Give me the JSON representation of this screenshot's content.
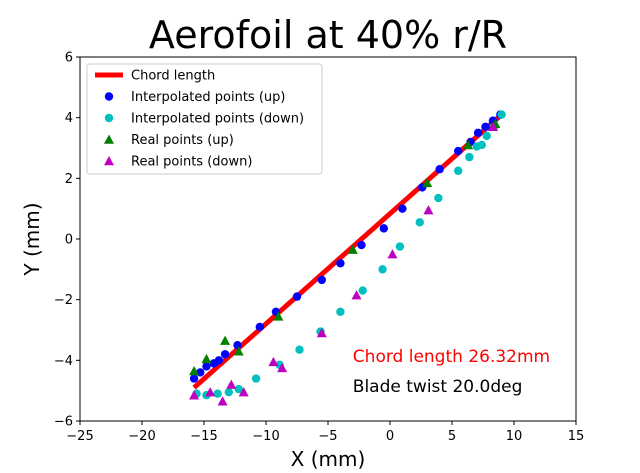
{
  "chart_data": {
    "type": "scatter",
    "title": "Aerofoil at 40% r/R",
    "xlabel": "X (mm)",
    "ylabel": "Y (mm)",
    "xlim": [
      -25,
      15
    ],
    "ylim": [
      -6,
      6
    ],
    "xticks": [
      "−25",
      "−20",
      "−15",
      "−10",
      "−5",
      "0",
      "5",
      "10",
      "15"
    ],
    "yticks": [
      "−6",
      "−4",
      "−2",
      "0",
      "2",
      "4",
      "6"
    ],
    "grid": false,
    "legend_position": "top-left",
    "chord_line": {
      "name": "Chord length",
      "color": "#ff0000",
      "x": [
        -15.8,
        9.0
      ],
      "y": [
        -4.9,
        4.1
      ]
    },
    "series": [
      {
        "name": "Interpolated points (up)",
        "marker": "circle",
        "color": "#0000ff",
        "x": [
          -15.8,
          -15.3,
          -14.8,
          -14.2,
          -13.8,
          -13.3,
          -12.3,
          -10.5,
          -9.2,
          -7.5,
          -5.5,
          -4.0,
          -2.3,
          -0.5,
          1.0,
          2.6,
          4.0,
          5.5,
          6.5,
          7.1,
          7.7,
          8.3,
          8.9
        ],
        "y": [
          -4.6,
          -4.4,
          -4.2,
          -4.1,
          -4.0,
          -3.8,
          -3.5,
          -2.9,
          -2.4,
          -1.9,
          -1.35,
          -0.8,
          -0.2,
          0.35,
          1.0,
          1.7,
          2.3,
          2.9,
          3.2,
          3.5,
          3.7,
          3.9,
          4.1
        ]
      },
      {
        "name": "Interpolated points (down)",
        "marker": "circle",
        "color": "#00bfbf",
        "x": [
          -15.6,
          -14.8,
          -13.9,
          -13.0,
          -12.2,
          -10.8,
          -8.9,
          -7.3,
          -5.6,
          -4.0,
          -2.2,
          -0.6,
          0.8,
          2.4,
          3.9,
          5.5,
          6.4,
          7.0,
          7.4,
          7.8,
          8.4,
          9.0
        ],
        "y": [
          -5.1,
          -5.15,
          -5.1,
          -5.05,
          -4.95,
          -4.6,
          -4.15,
          -3.65,
          -3.05,
          -2.4,
          -1.7,
          -1.0,
          -0.25,
          0.55,
          1.35,
          2.25,
          2.7,
          3.05,
          3.1,
          3.4,
          3.7,
          4.1
        ]
      },
      {
        "name": "Real points (up)",
        "marker": "triangle-up",
        "color": "#008000",
        "x": [
          -15.8,
          -14.8,
          -13.3,
          -12.2,
          -9.0,
          -3.0,
          3.0,
          6.3,
          8.5
        ],
        "y": [
          -4.35,
          -3.95,
          -3.35,
          -3.7,
          -2.55,
          -0.35,
          1.85,
          3.1,
          3.8
        ]
      },
      {
        "name": "Real points (down)",
        "marker": "triangle-up",
        "color": "#bf00bf",
        "x": [
          -15.8,
          -14.5,
          -13.5,
          -12.8,
          -11.8,
          -9.4,
          -8.7,
          -5.5,
          -2.7,
          0.2,
          3.1,
          8.3
        ],
        "y": [
          -5.15,
          -5.05,
          -5.35,
          -4.8,
          -5.05,
          -4.05,
          -4.25,
          -3.1,
          -1.85,
          -0.5,
          0.95,
          3.7
        ]
      }
    ],
    "annotations": [
      {
        "text": "Chord length 26.32mm",
        "color": "#ff0000",
        "x": -3.0,
        "y": -3.85
      },
      {
        "text": "Blade twist 20.0deg",
        "color": "#000000",
        "x": -3.0,
        "y": -4.85
      }
    ]
  }
}
